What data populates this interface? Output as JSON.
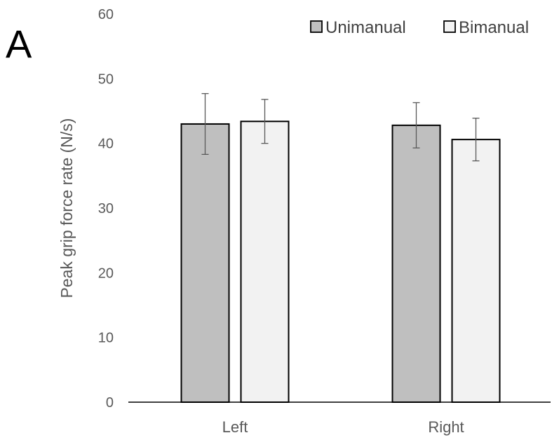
{
  "panel_label": "A",
  "chart_data": {
    "type": "bar",
    "categories": [
      "Left",
      "Right"
    ],
    "series": [
      {
        "name": "Unimanual",
        "values": [
          43.0,
          42.8
        ],
        "error": [
          4.7,
          3.5
        ],
        "color": "#bfbfbf"
      },
      {
        "name": "Bimanual",
        "values": [
          43.4,
          40.6
        ],
        "error": [
          3.4,
          3.3
        ],
        "color": "#f2f2f2"
      }
    ],
    "ylabel": "Peak grip force rate (N/s)",
    "xlabel": "",
    "ylim": [
      0,
      60
    ],
    "yticks": [
      "0",
      "10",
      "20",
      "30",
      "40",
      "50",
      "60"
    ],
    "grid": false,
    "legend_position": "top-right",
    "colors": {
      "bar_stroke": "#000000",
      "axis": "#000000",
      "error_bar": "#595959"
    }
  }
}
